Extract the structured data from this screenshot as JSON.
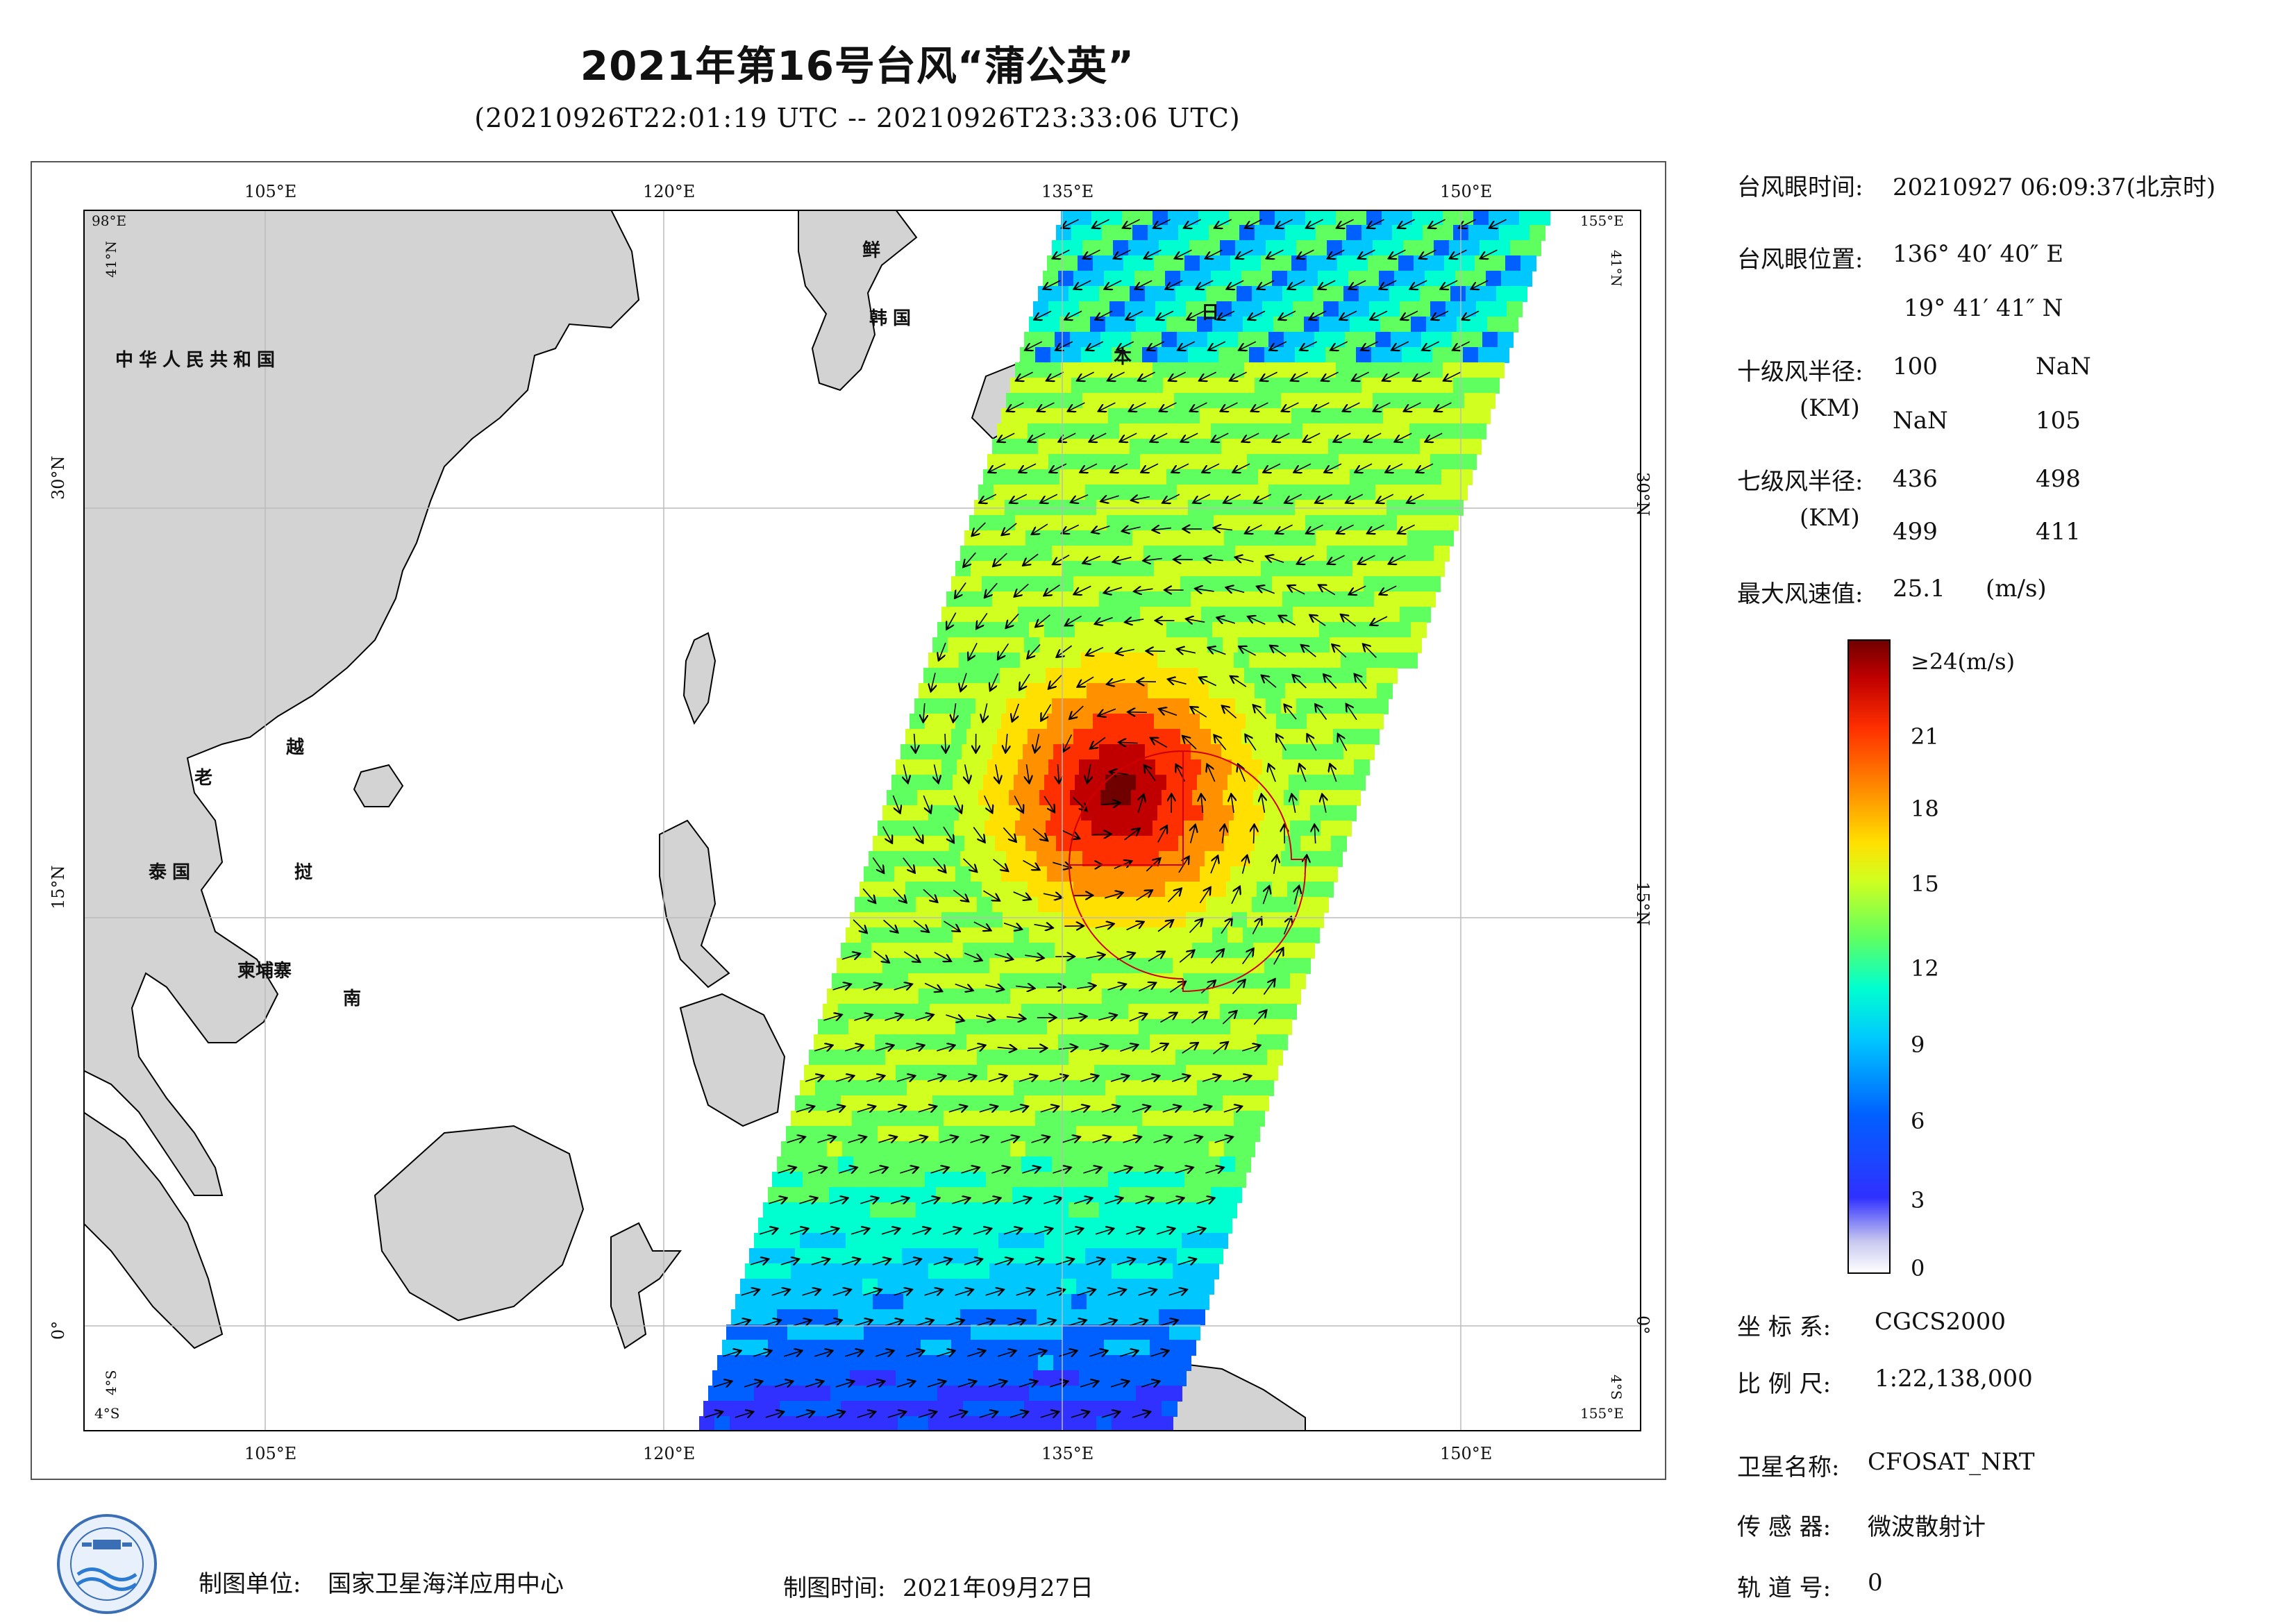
{
  "title": "2021年第16号台风“蒲公英”",
  "subtitle": "(20210926T22:01:19 UTC -- 20210926T23:33:06 UTC)",
  "map": {
    "lon_labels": [
      "105°E",
      "120°E",
      "135°E",
      "150°E"
    ],
    "lat_labels": [
      "30°N",
      "15°N",
      "0°"
    ],
    "corner_labels": {
      "tl_lon": "98°E",
      "tl_lat": "41°N",
      "tr_lon": "155°E",
      "tr_lat": "41°N",
      "bl_lon": "4°S",
      "bl_lat": "4°S",
      "br_lon": "155°E",
      "br_lat": "4°S"
    },
    "country_labels": [
      "中华人民共和国",
      "鲜",
      "韩国",
      "日",
      "本",
      "老",
      "越",
      "泰国",
      "挝",
      "柬埔寨",
      "南"
    ]
  },
  "info": {
    "eye_time_label": "台风眼时间:",
    "eye_time_value": "20210927 06:09:37(北京时)",
    "eye_pos_label": "台风眼位置:",
    "eye_lon": "136° 40′ 40″ E",
    "eye_lat": "19° 41′ 41″ N",
    "r10_label": "十级风半径:",
    "r10_unit": "(KM)",
    "r10_values": [
      "100",
      "NaN",
      "NaN",
      "105"
    ],
    "r7_label": "七级风半径:",
    "r7_unit": "(KM)",
    "r7_values": [
      "436",
      "498",
      "499",
      "411"
    ],
    "max_wind_label": "最大风速值:",
    "max_wind_value": "25.1",
    "max_wind_unit": "(m/s)"
  },
  "colorbar": {
    "top_label": "≥24(m/s)",
    "ticks": [
      "21",
      "18",
      "15",
      "12",
      "9",
      "6",
      "3",
      "0"
    ],
    "colors": [
      "#ffffff",
      "#c8c8f0",
      "#3030ff",
      "#0060ff",
      "#00c8ff",
      "#00ffd0",
      "#60ff60",
      "#d0ff20",
      "#ffe000",
      "#ff9000",
      "#ff3000",
      "#c00000",
      "#700000"
    ]
  },
  "meta": {
    "crs_label": "坐 标 系:",
    "crs_value": "CGCS2000",
    "scale_label": "比 例 尺:",
    "scale_value": "1:22,138,000",
    "sat_label": "卫星名称:",
    "sat_value": "CFOSAT_NRT",
    "sensor_label": "传 感 器:",
    "sensor_value": "微波散射计",
    "orbit_label": "轨 道 号:",
    "orbit_value": "0"
  },
  "footer": {
    "unit_label": "制图单位:",
    "unit_value": "国家卫星海洋应用中心",
    "time_label": "制图时间:",
    "time_value": "2021年09月27日"
  }
}
